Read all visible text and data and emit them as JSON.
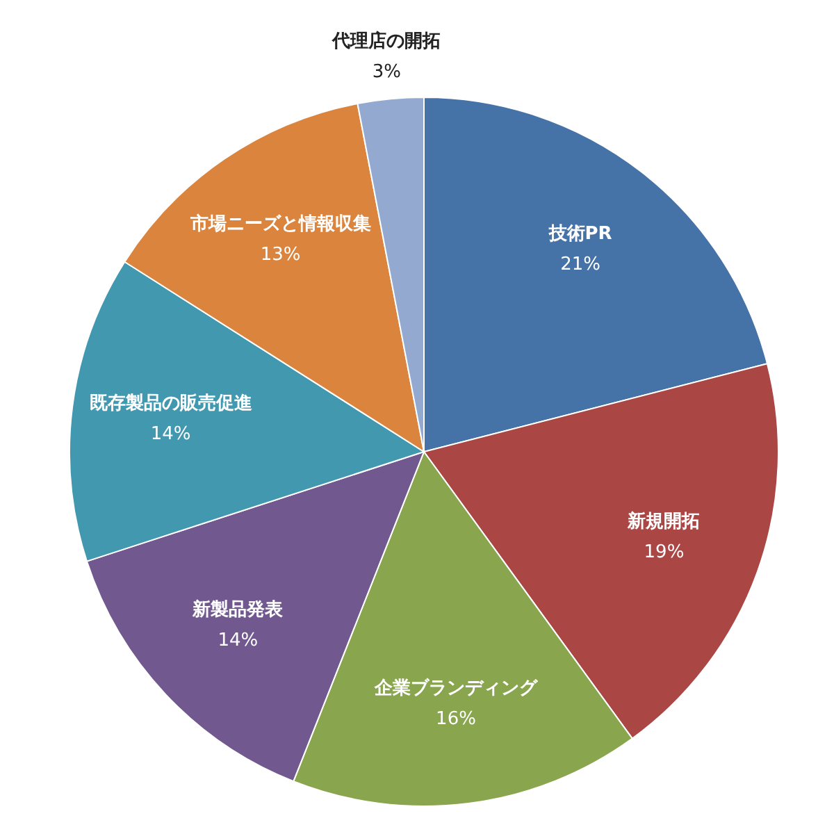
{
  "chart_data": {
    "type": "pie",
    "categories": [
      "技術PR",
      "新規開拓",
      "企業ブランディング",
      "新製品発表",
      "既存製品の販売促進",
      "市場ニーズと情報収集",
      "代理店の開拓"
    ],
    "values": [
      21,
      19,
      16,
      14,
      14,
      13,
      3
    ],
    "value_labels": [
      "21%",
      "19%",
      "16%",
      "14%",
      "14%",
      "13%",
      "3%"
    ],
    "colors": [
      "#4572a7",
      "#aa4643",
      "#89a54e",
      "#71588f",
      "#4198af",
      "#db843d",
      "#93a9cf"
    ],
    "legend": false
  }
}
